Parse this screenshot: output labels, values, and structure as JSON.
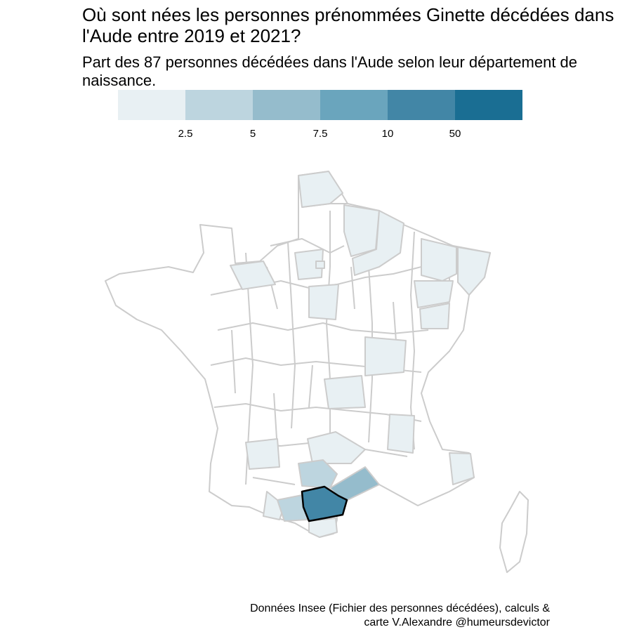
{
  "title": "Où sont nées les personnes prénommées Ginette décédées dans l'Aude entre 2019 et 2021?",
  "subtitle": "Part des 87 personnes décédées dans l'Aude selon leur département de naissance.",
  "legend": {
    "colors": [
      "#e8f0f3",
      "#bdd5df",
      "#95bccc",
      "#6aa5bd",
      "#4286a6",
      "#1a6e93"
    ],
    "ticks": [
      "2.5",
      "5",
      "7.5",
      "10",
      "50"
    ]
  },
  "map": {
    "region": "France métropolitaine",
    "border_color": "#cccccc",
    "highlight_department": "Aude",
    "highlight_outline": "#000000",
    "shaded_departments": [
      {
        "name": "Aude",
        "bin": 4
      },
      {
        "name": "Hérault",
        "bin": 2
      },
      {
        "name": "Tarn",
        "bin": 1
      },
      {
        "name": "Ariège",
        "bin": 1
      },
      {
        "name": "Pyrénées-Orientales",
        "bin": 0
      },
      {
        "name": "Haute-Garonne",
        "bin": 0
      },
      {
        "name": "Aveyron",
        "bin": 0
      },
      {
        "name": "Tarn-et-Garonne",
        "bin": 0
      },
      {
        "name": "Nord",
        "bin": 0
      },
      {
        "name": "Pas-de-Calais",
        "bin": 0
      },
      {
        "name": "Aisne",
        "bin": 0
      },
      {
        "name": "Marne",
        "bin": 0
      },
      {
        "name": "Ardennes",
        "bin": 0
      },
      {
        "name": "Meuse",
        "bin": 0
      },
      {
        "name": "Meurthe-et-Moselle",
        "bin": 0
      },
      {
        "name": "Bas-Rhin",
        "bin": 0
      },
      {
        "name": "Haute-Saône",
        "bin": 0
      },
      {
        "name": "Doubs",
        "bin": 0
      },
      {
        "name": "Saône-et-Loire",
        "bin": 0
      },
      {
        "name": "Puy-de-Dôme",
        "bin": 0
      },
      {
        "name": "Drôme",
        "bin": 0
      },
      {
        "name": "Alpes-Maritimes",
        "bin": 0
      },
      {
        "name": "Loiret",
        "bin": 0
      },
      {
        "name": "Cher",
        "bin": 0
      },
      {
        "name": "Paris",
        "bin": 0
      },
      {
        "name": "Calvados",
        "bin": 0
      }
    ]
  },
  "caption": {
    "line1": "Données Insee (Fichier des personnes décédées), calculs &",
    "line2": "carte V.Alexandre @humeursdevictor"
  }
}
